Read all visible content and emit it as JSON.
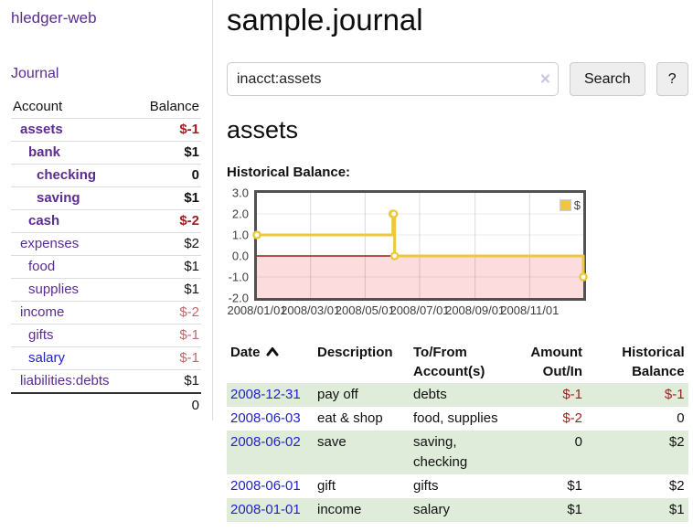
{
  "colors": {
    "link-purple": "#5b2d90",
    "link-blue": "#2222cc",
    "negative": "#9d1f1f",
    "negative-muted": "#bb6b6b",
    "row-green": "#dfecd9",
    "chart-line": "#edc83d",
    "chart-negative-bg": "#fcdcdc",
    "chart-zero-line": "#a01818",
    "chart-border": "#515151",
    "divider": "#dddddd"
  },
  "sidebar": {
    "app_title": "hledger-web",
    "journal_link": "Journal",
    "accounts_header": {
      "account": "Account",
      "balance": "Balance"
    },
    "accounts": [
      {
        "name": "assets",
        "indent": 1,
        "bold": true,
        "balance": "$-1",
        "balance_style": "neg"
      },
      {
        "name": "bank",
        "indent": 2,
        "bold": true,
        "balance": "$1",
        "balance_style": ""
      },
      {
        "name": "checking",
        "indent": 3,
        "bold": true,
        "balance": "0",
        "balance_style": ""
      },
      {
        "name": "saving",
        "indent": 3,
        "bold": true,
        "balance": "$1",
        "balance_style": ""
      },
      {
        "name": "cash",
        "indent": 2,
        "bold": true,
        "balance": "$-2",
        "balance_style": "neg"
      },
      {
        "name": "expenses",
        "indent": 1,
        "bold": false,
        "balance": "$2",
        "balance_style": ""
      },
      {
        "name": "food",
        "indent": 2,
        "bold": false,
        "balance": "$1",
        "balance_style": ""
      },
      {
        "name": "supplies",
        "indent": 2,
        "bold": false,
        "balance": "$1",
        "balance_style": ""
      },
      {
        "name": "income",
        "indent": 1,
        "bold": false,
        "balance": "$-2",
        "balance_style": "negmuted"
      },
      {
        "name": "gifts",
        "indent": 2,
        "bold": false,
        "balance": "$-1",
        "balance_style": "negmuted"
      },
      {
        "name": "salary",
        "indent": 2,
        "bold": false,
        "balance": "$-1",
        "balance_style": "negmuted",
        "link_style": "blue"
      },
      {
        "name": "liabilities:debts",
        "indent": 1,
        "bold": false,
        "balance": "$1",
        "balance_style": ""
      }
    ],
    "total": "0"
  },
  "main": {
    "title": "sample.journal",
    "search": {
      "value": "inacct:assets",
      "clear_icon": "×",
      "button_label": "Search",
      "help_label": "?"
    },
    "account_heading": "assets"
  },
  "chart_data": {
    "type": "line",
    "step": true,
    "title": "Historical Balance:",
    "series": [
      {
        "name": "$",
        "color": "#edc83d",
        "points": [
          [
            "2008-01-01",
            1
          ],
          [
            "2008-06-01",
            2
          ],
          [
            "2008-06-02",
            2
          ],
          [
            "2008-06-03",
            0
          ],
          [
            "2008-12-31",
            -1
          ]
        ]
      }
    ],
    "xlim": [
      "2008-01-01",
      "2008-12-31"
    ],
    "ylim": [
      -2,
      3
    ],
    "x_ticks": [
      {
        "date": "2008-01-01",
        "label": "2008/01/01"
      },
      {
        "date": "2008-03-01",
        "label": "2008/03/01"
      },
      {
        "date": "2008-05-01",
        "label": "2008/05/01"
      },
      {
        "date": "2008-07-01",
        "label": "2008/07/01"
      },
      {
        "date": "2008-09-01",
        "label": "2008/09/01"
      },
      {
        "date": "2008-11-01",
        "label": "2008/11/01"
      }
    ],
    "y_ticks": [
      {
        "value": 3,
        "label": "3.0"
      },
      {
        "value": 2,
        "label": "2.0"
      },
      {
        "value": 1,
        "label": "1.0"
      },
      {
        "value": 0,
        "label": "0.0"
      },
      {
        "value": -1,
        "label": "-1.0"
      },
      {
        "value": -2,
        "label": "-2.0"
      }
    ],
    "legend": {
      "label": "$",
      "position": "top-right"
    },
    "grid": true,
    "negative_region_shaded": true
  },
  "register": {
    "headers": [
      {
        "key": "date",
        "label": "Date",
        "sorted": true
      },
      {
        "key": "description",
        "label": "Description"
      },
      {
        "key": "accounts",
        "label": "To/From Account(s)"
      },
      {
        "key": "amount",
        "label": "Amount Out/In"
      },
      {
        "key": "balance",
        "label": "Historical Balance"
      }
    ],
    "rows": [
      {
        "date": "2008-12-31",
        "description": "pay off",
        "accounts": "debts",
        "amount": "$-1",
        "amount_negative": true,
        "balance": "$-1",
        "balance_negative": true
      },
      {
        "date": "2008-06-03",
        "description": "eat & shop",
        "accounts": "food, supplies",
        "amount": "$-2",
        "amount_negative": true,
        "balance": "0",
        "balance_negative": false
      },
      {
        "date": "2008-06-02",
        "description": "save",
        "accounts": "saving, checking",
        "amount": "0",
        "amount_negative": false,
        "balance": "$2",
        "balance_negative": false
      },
      {
        "date": "2008-06-01",
        "description": "gift",
        "accounts": "gifts",
        "amount": "$1",
        "amount_negative": false,
        "balance": "$2",
        "balance_negative": false
      },
      {
        "date": "2008-01-01",
        "description": "income",
        "accounts": "salary",
        "amount": "$1",
        "amount_negative": false,
        "balance": "$1",
        "balance_negative": false
      }
    ]
  }
}
